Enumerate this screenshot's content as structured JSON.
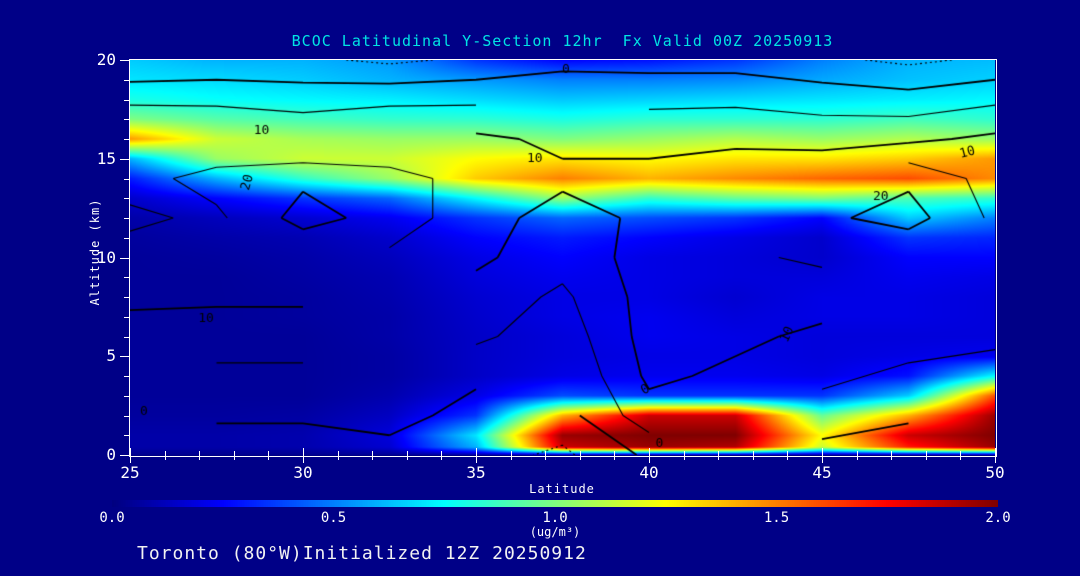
{
  "colors": {
    "background": "#000087",
    "title_text": "#00E4E4",
    "axis_text": "#FFFFFF",
    "tick": "#FFFFFF",
    "contour_line": "#000000"
  },
  "header": {
    "title": "BCOC Latitudinal Y-Section 12hr  Fx Valid 00Z 20250913"
  },
  "footer": {
    "text": "Toronto (80°W)Initialized 12Z 20250912"
  },
  "chart_data": {
    "type": "heatmap",
    "title": "BCOC Latitudinal Y-Section 12hr  Fx Valid 00Z 20250913",
    "xlabel": "Latitude",
    "ylabel": "Altitude (km)",
    "xlim": [
      25,
      50
    ],
    "ylim": [
      0,
      20
    ],
    "x_major_ticks": [
      25,
      30,
      35,
      40,
      45,
      50
    ],
    "x_minor_step": 1,
    "y_major_ticks": [
      0,
      5,
      10,
      15,
      20
    ],
    "y_minor_step": 1,
    "colorbar": {
      "min": 0.0,
      "max": 2.0,
      "tick_labels": [
        "0.0",
        "0.5",
        "1.0",
        "1.5",
        "2.0"
      ],
      "units": "(ug/m³)",
      "palette": "jet"
    },
    "field": {
      "name": "BCOC concentration",
      "units": "ug/m3",
      "lats": [
        25,
        27.5,
        30,
        32.5,
        35,
        37.5,
        40,
        42.5,
        45,
        47.5,
        50
      ],
      "alts": [
        20,
        19,
        18,
        17,
        16,
        15,
        14,
        13,
        12,
        11,
        10,
        9,
        8,
        7,
        6,
        5,
        4,
        3,
        2,
        1,
        0.4,
        0
      ],
      "values": [
        [
          0.65,
          0.6,
          0.6,
          0.55,
          0.35,
          0.25,
          0.28,
          0.35,
          0.5,
          0.6,
          0.62
        ],
        [
          0.7,
          0.68,
          0.65,
          0.6,
          0.55,
          0.5,
          0.5,
          0.52,
          0.58,
          0.63,
          0.66
        ],
        [
          0.8,
          0.76,
          0.74,
          0.72,
          0.68,
          0.64,
          0.66,
          0.68,
          0.7,
          0.72,
          0.74
        ],
        [
          1.0,
          0.92,
          0.88,
          0.85,
          0.84,
          0.8,
          0.84,
          0.84,
          0.84,
          0.88,
          0.84
        ],
        [
          1.45,
          1.15,
          1.08,
          1.05,
          1.05,
          1.0,
          1.05,
          1.1,
          1.05,
          1.1,
          1.05
        ],
        [
          0.6,
          1.05,
          1.15,
          1.15,
          1.25,
          1.3,
          1.25,
          1.3,
          1.3,
          1.35,
          1.45
        ],
        [
          0.3,
          0.6,
          0.85,
          1.05,
          1.35,
          1.5,
          1.4,
          1.48,
          1.55,
          1.6,
          1.48
        ],
        [
          0.15,
          0.25,
          0.35,
          0.45,
          0.75,
          1.05,
          0.85,
          0.95,
          1.0,
          0.9,
          0.85
        ],
        [
          0.08,
          0.12,
          0.16,
          0.22,
          0.35,
          0.45,
          0.4,
          0.35,
          0.25,
          0.65,
          0.5
        ],
        [
          0.06,
          0.08,
          0.1,
          0.15,
          0.25,
          0.3,
          0.25,
          0.2,
          0.15,
          0.35,
          0.32
        ],
        [
          0.05,
          0.06,
          0.08,
          0.12,
          0.2,
          0.25,
          0.2,
          0.18,
          0.15,
          0.25,
          0.25
        ],
        [
          0.05,
          0.05,
          0.07,
          0.1,
          0.18,
          0.22,
          0.2,
          0.18,
          0.18,
          0.22,
          0.2
        ],
        [
          0.05,
          0.05,
          0.06,
          0.09,
          0.16,
          0.2,
          0.2,
          0.16,
          0.2,
          0.2,
          0.18
        ],
        [
          0.05,
          0.05,
          0.06,
          0.08,
          0.15,
          0.2,
          0.22,
          0.18,
          0.2,
          0.2,
          0.18
        ],
        [
          0.05,
          0.05,
          0.05,
          0.08,
          0.14,
          0.18,
          0.22,
          0.2,
          0.18,
          0.18,
          0.18
        ],
        [
          0.05,
          0.05,
          0.05,
          0.07,
          0.14,
          0.18,
          0.2,
          0.2,
          0.18,
          0.2,
          0.22
        ],
        [
          0.05,
          0.05,
          0.05,
          0.07,
          0.14,
          0.2,
          0.22,
          0.22,
          0.2,
          0.28,
          0.75
        ],
        [
          0.05,
          0.05,
          0.05,
          0.09,
          0.2,
          0.4,
          0.35,
          0.35,
          0.35,
          0.65,
          1.6
        ],
        [
          0.06,
          0.06,
          0.07,
          0.13,
          0.35,
          1.4,
          1.85,
          1.85,
          0.95,
          1.4,
          1.95
        ],
        [
          0.08,
          0.08,
          0.09,
          0.18,
          0.7,
          1.95,
          2.0,
          2.0,
          1.25,
          1.85,
          2.0
        ],
        [
          0.08,
          0.08,
          0.09,
          0.16,
          0.6,
          1.85,
          1.95,
          1.9,
          1.15,
          1.7,
          1.95
        ],
        [
          0.03,
          0.03,
          0.03,
          0.04,
          0.06,
          0.08,
          0.08,
          0.08,
          0.06,
          0.06,
          0.06
        ]
      ]
    },
    "overlay_contours": {
      "lats": [
        25,
        27.5,
        30,
        32.5,
        35,
        37.5,
        40,
        42.5,
        45,
        47.5,
        50
      ],
      "alts": [
        20,
        18,
        16,
        14,
        12,
        10,
        8,
        6,
        4,
        2,
        0
      ],
      "levels_solid": [
        0,
        5,
        10,
        15,
        20
      ],
      "levels_dotted": [
        -5
      ],
      "labeled_levels": [
        0,
        10,
        20
      ],
      "values": [
        [
          -5,
          -4,
          -4,
          -6,
          -4,
          -2,
          -2,
          -2,
          -4,
          -6,
          -4
        ],
        [
          4,
          4,
          3,
          4,
          4,
          5,
          4,
          4,
          3,
          2,
          4
        ],
        [
          11,
          10,
          9,
          10,
          11,
          9,
          8,
          9,
          8,
          9,
          11
        ],
        [
          13,
          17,
          19,
          17,
          13,
          11,
          12,
          13,
          15,
          19,
          13
        ],
        [
          16,
          14,
          22,
          18,
          12,
          8,
          11,
          15,
          19,
          22,
          14
        ],
        [
          13,
          12,
          15,
          14,
          11,
          7,
          12,
          14,
          16,
          15,
          11
        ],
        [
          11,
          11,
          11,
          10,
          8,
          4,
          12,
          13,
          12,
          10,
          8
        ],
        [
          8,
          7,
          7,
          8,
          6,
          2,
          12,
          11,
          9,
          7,
          6
        ],
        [
          5,
          4,
          4,
          5,
          1,
          0,
          11,
          9,
          6,
          4,
          3
        ],
        [
          0,
          1,
          1,
          2,
          -2,
          -2,
          8,
          5,
          3,
          1,
          0
        ],
        [
          -4,
          -4,
          -4,
          -2,
          -3,
          -6,
          1,
          0,
          -2,
          -4,
          -5
        ]
      ],
      "labels": [
        {
          "text": "0",
          "lat": 37.6,
          "alt": 19.5,
          "angle": 0
        },
        {
          "text": "10",
          "lat": 28.8,
          "alt": 16.4,
          "angle": 0
        },
        {
          "text": "10",
          "lat": 36.7,
          "alt": 15.0,
          "angle": 0
        },
        {
          "text": "10",
          "lat": 49.2,
          "alt": 15.3,
          "angle": -15
        },
        {
          "text": "20",
          "lat": 28.4,
          "alt": 13.8,
          "angle": -75
        },
        {
          "text": "20",
          "lat": 46.7,
          "alt": 13.1,
          "angle": 0
        },
        {
          "text": "10",
          "lat": 27.2,
          "alt": 6.9,
          "angle": 0
        },
        {
          "text": "10",
          "lat": 44.0,
          "alt": 6.1,
          "angle": -65
        },
        {
          "text": "0",
          "lat": 25.4,
          "alt": 2.2,
          "angle": 0
        },
        {
          "text": "0",
          "lat": 39.9,
          "alt": 3.3,
          "angle": -30
        },
        {
          "text": "0",
          "lat": 40.3,
          "alt": 0.6,
          "angle": 0
        }
      ]
    }
  }
}
